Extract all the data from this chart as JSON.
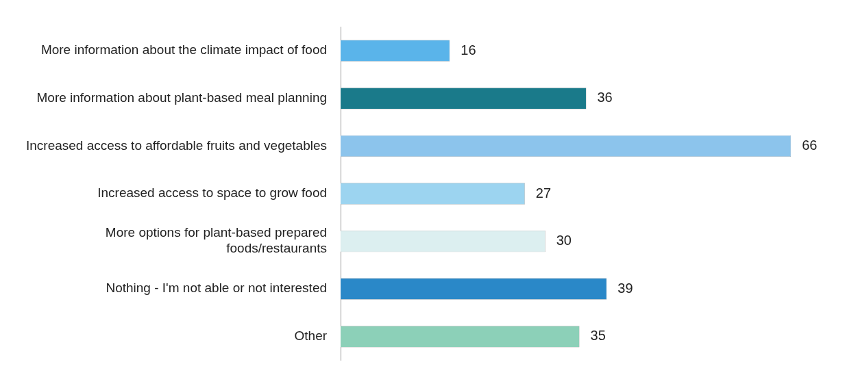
{
  "chart_data": {
    "type": "bar",
    "orientation": "horizontal",
    "categories": [
      "More information about the climate impact of food",
      "More information about plant-based meal planning",
      "Increased access to affordable fruits and vegetables",
      "Increased access to space to grow food",
      "More options for plant-based prepared foods/restaurants",
      "Nothing - I'm not able or not interested",
      "Other"
    ],
    "values": [
      16,
      36,
      66,
      27,
      30,
      39,
      35
    ],
    "colors": [
      "#5ab4ea",
      "#1a7a8a",
      "#8cc4ec",
      "#9cd4f0",
      "#dceff0",
      "#2a88c8",
      "#8cd0b8"
    ],
    "data_labels": true
  }
}
